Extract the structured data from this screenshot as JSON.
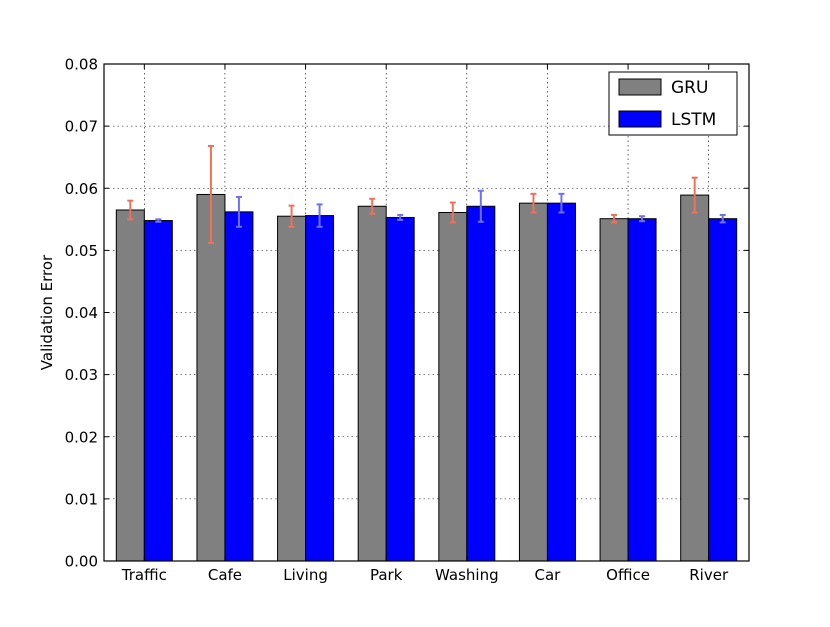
{
  "chart_data": {
    "type": "bar",
    "title": "",
    "xlabel": "",
    "ylabel": "Validation Error",
    "ylim": [
      0,
      0.08
    ],
    "yticks": [
      "0.00",
      "0.01",
      "0.02",
      "0.03",
      "0.04",
      "0.05",
      "0.06",
      "0.07",
      "0.08"
    ],
    "grid": true,
    "legend_position": "top-right",
    "categories": [
      "Traffic",
      "Cafe",
      "Living",
      "Park",
      "Washing",
      "Car",
      "Office",
      "River"
    ],
    "series": [
      {
        "name": "GRU",
        "color": "#808080",
        "error_color": "#f07058",
        "values": [
          0.0565,
          0.059,
          0.0555,
          0.0571,
          0.0561,
          0.0576,
          0.0551,
          0.0589
        ],
        "errors": [
          0.0015,
          0.0078,
          0.0017,
          0.0012,
          0.0016,
          0.0015,
          0.0006,
          0.0028
        ]
      },
      {
        "name": "LSTM",
        "color": "#0000ff",
        "error_color": "#7070f0",
        "values": [
          0.0548,
          0.0562,
          0.0556,
          0.0553,
          0.0571,
          0.0576,
          0.0551,
          0.0551
        ],
        "errors": [
          0.0002,
          0.0024,
          0.0018,
          0.0004,
          0.0025,
          0.0015,
          0.0004,
          0.0006
        ]
      }
    ]
  }
}
